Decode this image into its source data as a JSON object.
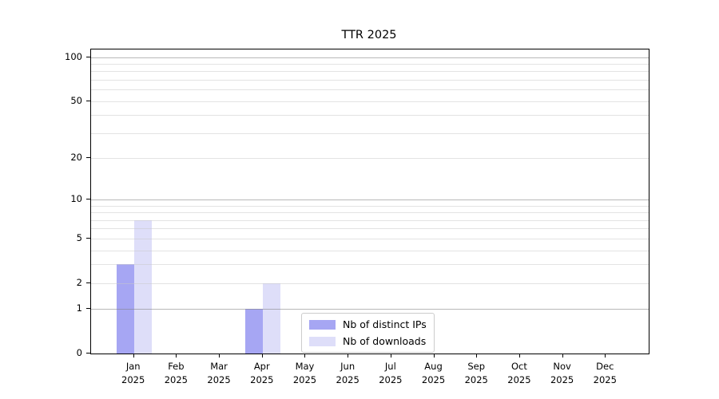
{
  "chart_data": {
    "type": "bar",
    "title": "TTR 2025",
    "categories": [
      "Jan",
      "Feb",
      "Mar",
      "Apr",
      "May",
      "Jun",
      "Jul",
      "Aug",
      "Sep",
      "Oct",
      "Nov",
      "Dec"
    ],
    "x_tick_second_line": "2025",
    "series": [
      {
        "name": "Nb of distinct IPs",
        "color": "#a6a6f3",
        "values": [
          3,
          0,
          0,
          1,
          0,
          0,
          0,
          0,
          0,
          0,
          0,
          0
        ]
      },
      {
        "name": "Nb of downloads",
        "color": "#dedef9",
        "values": [
          7,
          0,
          0,
          2,
          0,
          0,
          0,
          0,
          0,
          0,
          0,
          0
        ]
      }
    ],
    "xlabel": "",
    "ylabel": "",
    "y_axis": {
      "scale": "log1p",
      "ticks": [
        0,
        1,
        2,
        5,
        10,
        20,
        50,
        100
      ],
      "range": [
        0,
        113
      ],
      "major_gridlines": [
        1,
        10,
        100
      ],
      "minor_gridlines": [
        2,
        3,
        4,
        5,
        6,
        7,
        8,
        9,
        20,
        30,
        40,
        50,
        60,
        70,
        80,
        90
      ],
      "major_grid_color": "rgba(128,128,128,0.55)",
      "minor_grid_color": "rgba(200,200,200,0.5)"
    },
    "grid": true,
    "legend_position": "lower center"
  }
}
